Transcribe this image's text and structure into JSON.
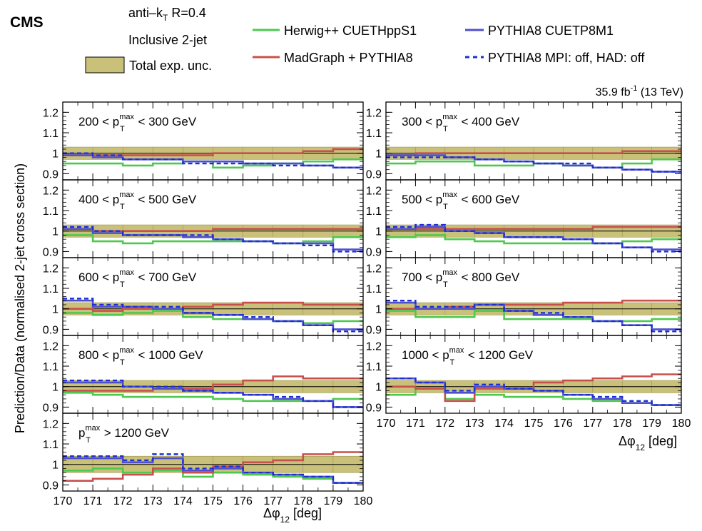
{
  "header": {
    "experiment": "CMS",
    "algo_main": "anti–k",
    "algo_sub": "T",
    "algo_rest": " R=0.4",
    "selection": "Inclusive 2-jet",
    "unc_label": "Total exp. unc.",
    "lumi_main": "35.9 fb",
    "lumi_sup": "-1",
    "lumi_rest": " (13 TeV)"
  },
  "legend": [
    {
      "key": "herwig",
      "label": "Herwig++ CUETHppS1",
      "color": "#4fc84f",
      "style": "solid"
    },
    {
      "key": "madgraph",
      "label": "MadGraph + PYTHIA8",
      "color": "#c8504c",
      "style": "solid"
    },
    {
      "key": "pythia",
      "label": "PYTHIA8 CUETP8M1",
      "color": "#4f4fcc",
      "style": "solid"
    },
    {
      "key": "pythia_off",
      "label": "PYTHIA8 MPI: off, HAD: off",
      "color": "#1a2fd6",
      "style": "dashed"
    }
  ],
  "colors": {
    "band": "#c9c07a",
    "band_edge": "#9c9350",
    "unity": "#000000"
  },
  "axes": {
    "ylabel": "Prediction/Data (normalised 2-jet cross section)",
    "xlabel_main": "Δφ",
    "xlabel_sub": "12",
    "xlabel_unit": " [deg]"
  },
  "chart_data": {
    "type": "line",
    "step": true,
    "x_edges": [
      170,
      171,
      172,
      173,
      174,
      175,
      176,
      177,
      178,
      179,
      180
    ],
    "xlim": [
      170,
      180
    ],
    "ylim": [
      0.87,
      1.25
    ],
    "yticks": [
      "0.9",
      "1",
      "1.1",
      "1.2"
    ],
    "xticks": [
      "170",
      "171",
      "172",
      "173",
      "174",
      "175",
      "176",
      "177",
      "178",
      "179",
      "180"
    ],
    "panels": [
      {
        "label_pre": "200 < p",
        "label_sup": "max",
        "label_sub": "T",
        "label_post": " < 300 GeV",
        "band": [
          0.03,
          0.03,
          0.03,
          0.03,
          0.03,
          0.03,
          0.03,
          0.03,
          0.03,
          0.03
        ],
        "series": {
          "herwig": [
            0.95,
            0.95,
            0.94,
            0.95,
            0.96,
            0.93,
            0.94,
            0.95,
            0.96,
            0.97
          ],
          "madgraph": [
            0.99,
            0.99,
            0.99,
            0.99,
            0.99,
            1.0,
            1.0,
            1.0,
            1.01,
            1.02
          ],
          "pythia": [
            0.99,
            0.98,
            0.97,
            0.97,
            0.96,
            0.96,
            0.95,
            0.95,
            0.94,
            0.93
          ],
          "pythia_off": [
            1.0,
            0.99,
            0.97,
            0.97,
            0.95,
            0.95,
            0.95,
            0.94,
            0.94,
            0.93
          ]
        }
      },
      {
        "label_pre": "300 < p",
        "label_sup": "max",
        "label_sub": "T",
        "label_post": " < 400 GeV",
        "band": [
          0.03,
          0.03,
          0.03,
          0.03,
          0.03,
          0.03,
          0.03,
          0.03,
          0.03,
          0.03
        ],
        "series": {
          "herwig": [
            0.95,
            0.96,
            0.96,
            0.94,
            0.94,
            0.95,
            0.94,
            0.93,
            0.95,
            0.97
          ],
          "madgraph": [
            0.99,
            1.0,
            1.0,
            1.0,
            1.0,
            1.0,
            1.0,
            1.0,
            1.01,
            1.01
          ],
          "pythia": [
            0.99,
            0.99,
            0.98,
            0.97,
            0.96,
            0.95,
            0.94,
            0.93,
            0.92,
            0.91
          ],
          "pythia_off": [
            0.98,
            0.98,
            0.98,
            0.97,
            0.96,
            0.95,
            0.95,
            0.93,
            0.92,
            0.91
          ]
        }
      },
      {
        "label_pre": "400 < p",
        "label_sup": "max",
        "label_sub": "T",
        "label_post": " < 500 GeV",
        "band": [
          0.03,
          0.03,
          0.03,
          0.03,
          0.03,
          0.03,
          0.03,
          0.03,
          0.03,
          0.03
        ],
        "series": {
          "herwig": [
            0.98,
            0.95,
            0.94,
            0.95,
            0.95,
            0.95,
            0.95,
            0.94,
            0.95,
            0.97
          ],
          "madgraph": [
            1.01,
            1.0,
            1.0,
            1.0,
            1.0,
            1.01,
            1.01,
            1.01,
            1.01,
            1.01
          ],
          "pythia": [
            1.01,
            0.99,
            0.98,
            0.98,
            0.97,
            0.96,
            0.95,
            0.94,
            0.94,
            0.91
          ],
          "pythia_off": [
            1.02,
            1.0,
            0.98,
            0.98,
            0.98,
            0.96,
            0.95,
            0.94,
            0.93,
            0.9
          ]
        }
      },
      {
        "label_pre": "500 < p",
        "label_sup": "max",
        "label_sub": "T",
        "label_post": " < 600 GeV",
        "band": [
          0.03,
          0.03,
          0.03,
          0.03,
          0.03,
          0.03,
          0.03,
          0.03,
          0.03,
          0.03
        ],
        "series": {
          "herwig": [
            0.97,
            0.98,
            0.96,
            0.95,
            0.94,
            0.94,
            0.94,
            0.94,
            0.95,
            0.96
          ],
          "madgraph": [
            1.01,
            1.01,
            1.01,
            1.01,
            1.01,
            1.01,
            1.01,
            1.02,
            1.02,
            1.02
          ],
          "pythia": [
            1.01,
            1.02,
            1.0,
            0.99,
            0.97,
            0.97,
            0.96,
            0.94,
            0.92,
            0.91
          ],
          "pythia_off": [
            1.02,
            1.03,
            1.0,
            0.99,
            0.97,
            0.97,
            0.96,
            0.94,
            0.92,
            0.9
          ]
        }
      },
      {
        "label_pre": "600 < p",
        "label_sup": "max",
        "label_sub": "T",
        "label_post": " < 700 GeV",
        "band": [
          0.03,
          0.03,
          0.03,
          0.03,
          0.03,
          0.03,
          0.03,
          0.03,
          0.03,
          0.03
        ],
        "series": {
          "herwig": [
            0.98,
            0.97,
            0.98,
            0.99,
            0.96,
            0.95,
            0.95,
            0.94,
            0.93,
            0.94
          ],
          "madgraph": [
            1.0,
            0.99,
            1.0,
            1.0,
            1.01,
            1.02,
            1.03,
            1.03,
            1.02,
            1.02
          ],
          "pythia": [
            1.04,
            1.01,
            1.01,
            1.0,
            0.98,
            0.97,
            0.95,
            0.94,
            0.92,
            0.9
          ],
          "pythia_off": [
            1.05,
            1.02,
            1.01,
            1.01,
            0.98,
            0.97,
            0.96,
            0.94,
            0.92,
            0.89
          ]
        }
      },
      {
        "label_pre": "700 < p",
        "label_sup": "max",
        "label_sub": "T",
        "label_post": " < 800 GeV",
        "band": [
          0.03,
          0.03,
          0.03,
          0.03,
          0.03,
          0.03,
          0.03,
          0.03,
          0.03,
          0.03
        ],
        "series": {
          "herwig": [
            0.99,
            0.96,
            0.96,
            0.99,
            0.95,
            0.95,
            0.95,
            0.94,
            0.94,
            0.95
          ],
          "madgraph": [
            1.0,
            1.0,
            1.01,
            1.02,
            1.02,
            1.02,
            1.03,
            1.03,
            1.04,
            1.04
          ],
          "pythia": [
            1.03,
            1.0,
            1.0,
            1.02,
            0.99,
            0.97,
            0.96,
            0.94,
            0.92,
            0.9
          ],
          "pythia_off": [
            1.04,
            1.01,
            1.01,
            1.02,
            0.99,
            0.98,
            0.96,
            0.94,
            0.92,
            0.89
          ]
        }
      },
      {
        "label_pre": "800 < p",
        "label_sup": "max",
        "label_sub": "T",
        "label_post": " < 1000 GeV",
        "band": [
          0.03,
          0.03,
          0.03,
          0.03,
          0.03,
          0.03,
          0.03,
          0.03,
          0.03,
          0.03
        ],
        "series": {
          "herwig": [
            0.97,
            0.96,
            0.95,
            0.95,
            0.95,
            0.94,
            0.93,
            0.93,
            0.93,
            0.94
          ],
          "madgraph": [
            0.98,
            0.98,
            0.98,
            0.99,
            0.99,
            1.01,
            1.03,
            1.05,
            1.04,
            1.04
          ],
          "pythia": [
            1.02,
            1.02,
            1.0,
            0.99,
            0.98,
            0.97,
            0.96,
            0.94,
            0.93,
            0.9
          ],
          "pythia_off": [
            1.03,
            1.03,
            1.0,
            1.0,
            0.98,
            0.97,
            0.96,
            0.95,
            0.93,
            0.9
          ]
        }
      },
      {
        "label_pre": "1000 < p",
        "label_sup": "max",
        "label_sub": "T",
        "label_post": " < 1200 GeV",
        "band": [
          0.03,
          0.03,
          0.03,
          0.03,
          0.03,
          0.03,
          0.03,
          0.03,
          0.03,
          0.03
        ],
        "series": {
          "herwig": [
            0.96,
            0.99,
            0.94,
            0.96,
            0.95,
            0.95,
            0.94,
            0.93,
            0.92,
            0.91
          ],
          "madgraph": [
            1.0,
            0.99,
            0.93,
            0.99,
            0.99,
            1.02,
            1.03,
            1.04,
            1.05,
            1.06
          ],
          "pythia": [
            1.04,
            1.02,
            0.97,
            1.0,
            0.99,
            0.98,
            0.96,
            0.94,
            0.92,
            0.91
          ],
          "pythia_off": [
            1.04,
            1.02,
            0.98,
            1.01,
            0.99,
            0.98,
            0.96,
            0.95,
            0.93,
            0.91
          ]
        }
      },
      {
        "label_pre": "p",
        "label_sup": "max",
        "label_sub": "T",
        "label_post": " > 1200 GeV",
        "band": [
          0.04,
          0.04,
          0.04,
          0.04,
          0.04,
          0.04,
          0.04,
          0.04,
          0.04,
          0.04
        ],
        "series": {
          "herwig": [
            0.97,
            0.98,
            0.96,
            0.97,
            0.94,
            0.96,
            0.95,
            0.94,
            0.93,
            0.91
          ],
          "madgraph": [
            0.92,
            0.93,
            0.95,
            0.98,
            0.96,
            0.99,
            1.01,
            1.02,
            1.05,
            1.06
          ],
          "pythia": [
            1.03,
            1.03,
            1.01,
            1.03,
            0.97,
            0.98,
            0.96,
            0.95,
            0.94,
            0.91
          ],
          "pythia_off": [
            1.04,
            1.04,
            1.02,
            1.05,
            0.98,
            0.99,
            0.96,
            0.95,
            0.94,
            0.91
          ]
        }
      }
    ]
  }
}
